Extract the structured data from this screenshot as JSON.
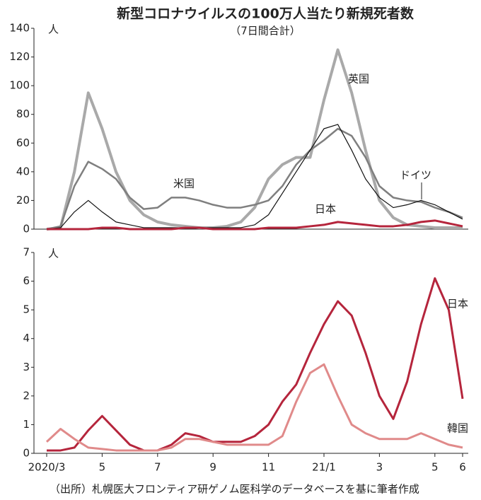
{
  "chart_data": [
    {
      "type": "line",
      "title": "新型コロナウイルスの100万人当たり新規死者数",
      "subtitle": "（7日間合計）",
      "y_unit": "人",
      "ylim": [
        0,
        140
      ],
      "yticks": [
        0,
        20,
        40,
        60,
        80,
        100,
        120,
        140
      ],
      "series": [
        {
          "name": "英国",
          "color": "#a9a9a9",
          "values": [
            0,
            1,
            40,
            95,
            70,
            40,
            20,
            10,
            5,
            3,
            2,
            1,
            1,
            2,
            5,
            15,
            35,
            45,
            50,
            50,
            90,
            125,
            95,
            55,
            20,
            8,
            3,
            2,
            1,
            1,
            1
          ]
        },
        {
          "name": "米国",
          "color": "#7f7f7f",
          "values": [
            0,
            2,
            30,
            47,
            42,
            35,
            22,
            14,
            15,
            22,
            22,
            20,
            17,
            15,
            15,
            17,
            20,
            30,
            45,
            55,
            62,
            70,
            65,
            50,
            30,
            22,
            20,
            19,
            15,
            12,
            8
          ]
        },
        {
          "name": "ドイツ",
          "color": "#111111",
          "values": [
            0,
            1,
            12,
            20,
            12,
            5,
            3,
            1,
            1,
            1,
            1,
            1,
            1,
            1,
            1,
            3,
            10,
            25,
            40,
            55,
            70,
            73,
            55,
            35,
            22,
            15,
            17,
            20,
            17,
            12,
            7
          ]
        },
        {
          "name": "日本",
          "color": "#b5253c",
          "values": [
            0,
            0,
            0,
            0,
            1,
            1,
            0,
            0,
            0,
            0,
            1,
            1,
            0,
            0,
            0,
            0,
            1,
            1,
            1,
            2,
            3,
            5,
            4,
            3,
            2,
            2,
            3,
            5,
            6,
            4,
            2
          ]
        }
      ]
    },
    {
      "type": "line",
      "y_unit": "人",
      "ylim": [
        0,
        7
      ],
      "yticks": [
        0,
        1,
        2,
        3,
        4,
        5,
        6,
        7
      ],
      "categories": [
        "2020/3",
        null,
        null,
        null,
        "5",
        null,
        null,
        null,
        "7",
        null,
        null,
        null,
        "9",
        null,
        null,
        null,
        "11",
        null,
        null,
        null,
        "21/1",
        null,
        null,
        null,
        "3",
        null,
        null,
        null,
        "5",
        null,
        "6"
      ],
      "series": [
        {
          "name": "日本",
          "color": "#b5253c",
          "values": [
            0.1,
            0.1,
            0.2,
            0.8,
            1.3,
            0.8,
            0.3,
            0.1,
            0.1,
            0.3,
            0.7,
            0.6,
            0.4,
            0.4,
            0.4,
            0.6,
            1.0,
            1.8,
            2.4,
            3.5,
            4.5,
            5.3,
            4.8,
            3.5,
            2.0,
            1.2,
            2.5,
            4.5,
            6.1,
            5.0,
            1.9
          ]
        },
        {
          "name": "韓国",
          "color": "#e08a8a",
          "values": [
            0.4,
            0.85,
            0.5,
            0.2,
            0.15,
            0.1,
            0.1,
            0.1,
            0.1,
            0.2,
            0.5,
            0.5,
            0.4,
            0.3,
            0.3,
            0.3,
            0.3,
            0.6,
            1.8,
            2.8,
            3.1,
            2.0,
            1.0,
            0.7,
            0.5,
            0.5,
            0.5,
            0.7,
            0.5,
            0.3,
            0.2
          ]
        }
      ]
    }
  ],
  "source": "（出所）札幌医大フロンティア研ゲノム医科学のデータベースを基に筆者作成"
}
